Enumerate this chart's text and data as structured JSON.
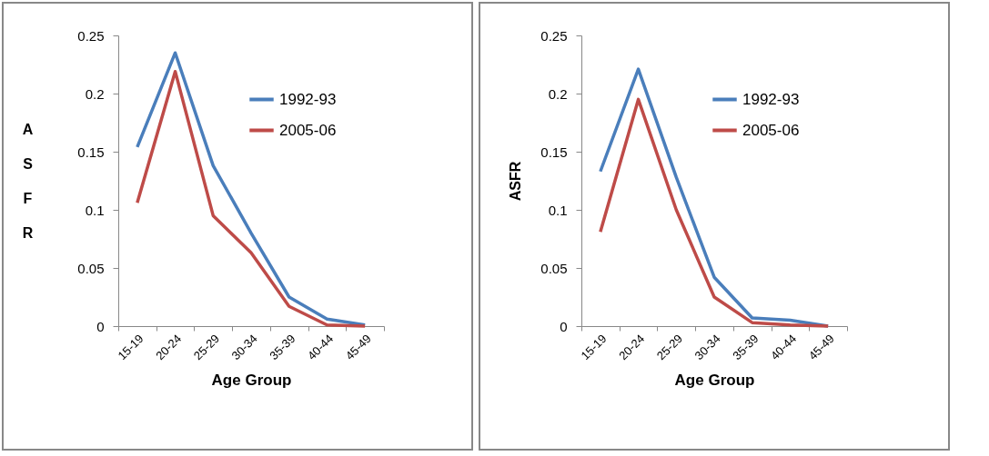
{
  "chart_data": [
    {
      "type": "line",
      "xlabel": "Age Group",
      "ylabel": "ASFR",
      "categories": [
        "15-19",
        "20-24",
        "25-29",
        "30-34",
        "35-39",
        "40-44",
        "45-49"
      ],
      "ylim": [
        0,
        0.25
      ],
      "yticks": [
        0,
        0.05,
        0.1,
        0.15,
        0.2,
        0.25
      ],
      "legend": "top right",
      "series": [
        {
          "name": "1992-93",
          "color": "#4a7ebb",
          "values": [
            0.154,
            0.235,
            0.138,
            0.08,
            0.025,
            0.006,
            0.001
          ]
        },
        {
          "name": "2005-06",
          "color": "#be4b48",
          "values": [
            0.106,
            0.219,
            0.095,
            0.063,
            0.017,
            0.001,
            0
          ]
        }
      ]
    },
    {
      "type": "line",
      "xlabel": "Age Group",
      "ylabel": "ASFR",
      "categories": [
        "15-19",
        "20-24",
        "25-29",
        "30-34",
        "35-39",
        "40-44",
        "45-49"
      ],
      "ylim": [
        0,
        0.25
      ],
      "yticks": [
        0,
        0.05,
        0.1,
        0.15,
        0.2,
        0.25
      ],
      "legend": "top right",
      "series": [
        {
          "name": "1992-93",
          "color": "#4a7ebb",
          "values": [
            0.133,
            0.221,
            0.128,
            0.042,
            0.007,
            0.005,
            0
          ]
        },
        {
          "name": "2005-06",
          "color": "#be4b48",
          "values": [
            0.081,
            0.195,
            0.1,
            0.025,
            0.003,
            0.001,
            0
          ]
        }
      ]
    }
  ]
}
